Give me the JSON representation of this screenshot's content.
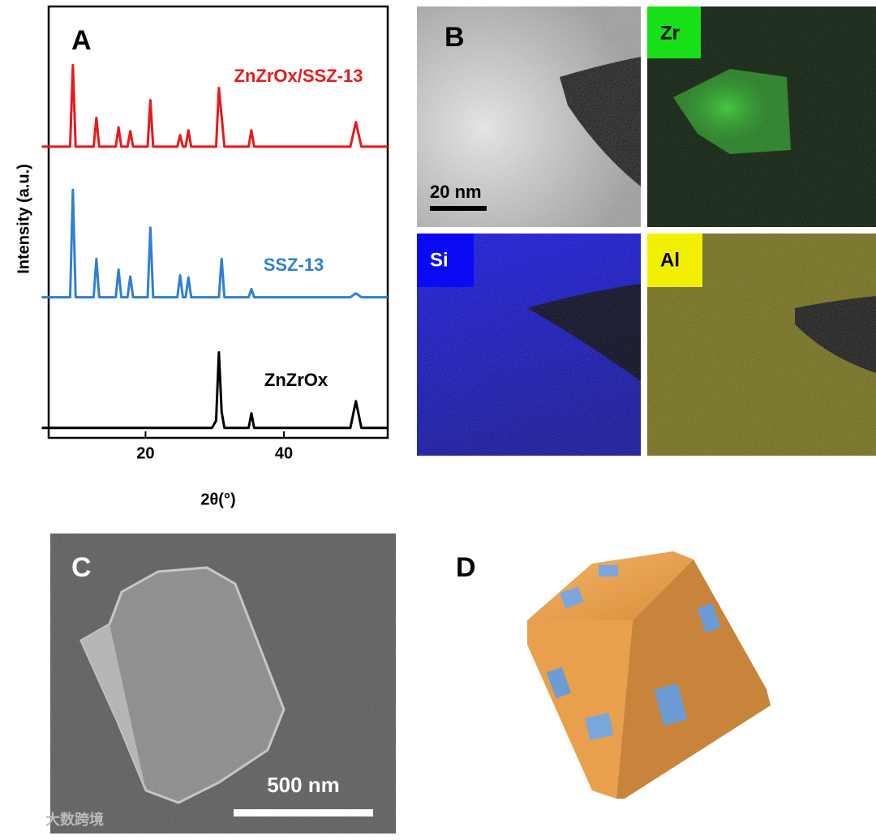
{
  "chart_data": {
    "type": "line",
    "panel": "A",
    "xlabel": "2θ(°)",
    "ylabel": "Intensity (a.u.)",
    "x": [
      5,
      9.1,
      9.5,
      9.9,
      12.5,
      12.9,
      13.3,
      15.7,
      16.1,
      16.5,
      17.4,
      17.8,
      18.2,
      20.3,
      20.7,
      21.1,
      24.6,
      25.0,
      25.4,
      25.8,
      26.2,
      26.6,
      29.6,
      30.2,
      30.6,
      31.0,
      31.4,
      31.9,
      34.9,
      35.3,
      35.7,
      49.6,
      50.4,
      51.2,
      55
    ],
    "series": [
      {
        "name": "ZnZrOx/SSZ-13",
        "color": "#e8191c",
        "values": [
          67.5,
          67.5,
          86.4,
          67.5,
          67.5,
          74.2,
          67.5,
          67.5,
          72,
          67.5,
          67.5,
          71.1,
          67.5,
          67.5,
          78.3,
          67.5,
          67.5,
          70.2,
          67.5,
          67.5,
          71.3,
          67.5,
          67.5,
          67.5,
          81.1,
          74.5,
          67.5,
          67.5,
          67.5,
          71.3,
          67.5,
          67.5,
          73.2,
          67.5,
          67.5
        ]
      },
      {
        "name": "SSZ-13",
        "color": "#2f7fd6",
        "values": [
          32.6,
          32.6,
          57.5,
          32.6,
          32.6,
          41.5,
          32.6,
          32.6,
          39,
          32.6,
          32.6,
          37.4,
          32.6,
          32.6,
          48.7,
          32.6,
          32.6,
          37.7,
          32.6,
          32.6,
          37.2,
          32.6,
          32.6,
          32.6,
          32.6,
          41.5,
          32.6,
          32.6,
          32.6,
          34.5,
          32.6,
          32.6,
          33.5,
          32.6,
          32.6
        ]
      },
      {
        "name": "ZnZrOx",
        "color": "#000000",
        "values": [
          2.3,
          2.3,
          2.3,
          2.3,
          2.3,
          2.3,
          2.3,
          2.3,
          2.3,
          2.3,
          2.3,
          2.3,
          2.3,
          2.3,
          2.3,
          2.3,
          2.3,
          2.3,
          2.3,
          2.3,
          2.3,
          2.3,
          2.3,
          4,
          19.8,
          6,
          2.3,
          2.3,
          2.3,
          5.7,
          2.3,
          2.3,
          8.5,
          2.3,
          2.3
        ]
      }
    ],
    "xlim": [
      6,
      55
    ],
    "xticks": [
      20,
      40
    ],
    "ylim": [
      0,
      100
    ]
  },
  "panel_b": {
    "label": "B",
    "scale_bar": "20 nm",
    "maps": [
      "Zr",
      "Si",
      "Al"
    ]
  },
  "panel_c": {
    "label": "C",
    "scale_bar": "500 nm"
  },
  "panel_d": {
    "label": "D"
  },
  "watermark": "大数跨境"
}
